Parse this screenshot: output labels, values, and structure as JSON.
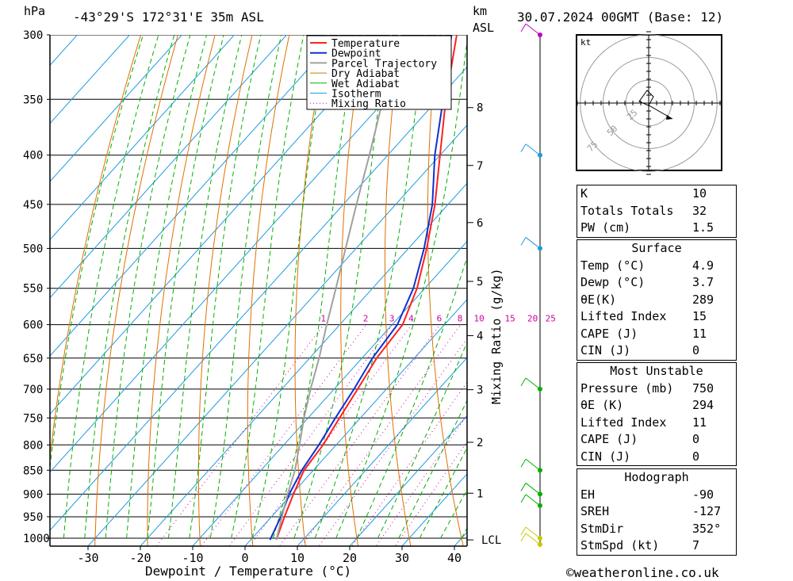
{
  "header": {
    "pressure_unit": "hPa",
    "location": "-43°29'S  172°31'E  35m  ASL",
    "height_unit": "km",
    "height_ref": "ASL",
    "datetime": "30.07.2024  00GMT  (Base: 12)"
  },
  "chart_data": {
    "type": "line",
    "title": "-43°29'S  172°31'E  35m  ASL",
    "xlabel": "Dewpoint / Temperature (°C)",
    "ylabel": "hPa",
    "y_right_label": "Mixing Ratio (g/kg)",
    "xlim": [
      -40,
      40
    ],
    "ylim": [
      1000,
      300
    ],
    "x_ticks": [
      -30,
      -20,
      -10,
      0,
      10,
      20,
      30,
      40
    ],
    "pressure_levels": [
      300,
      350,
      400,
      450,
      500,
      550,
      600,
      650,
      700,
      750,
      800,
      850,
      900,
      950,
      1000
    ],
    "height_ticks_km": [
      {
        "label": "8",
        "p": 357
      },
      {
        "label": "7",
        "p": 410
      },
      {
        "label": "6",
        "p": 470
      },
      {
        "label": "5",
        "p": 541
      },
      {
        "label": "4",
        "p": 616
      },
      {
        "label": "3",
        "p": 701
      },
      {
        "label": "2",
        "p": 795
      },
      {
        "label": "1",
        "p": 898
      }
    ],
    "lcl_label": "LCL",
    "lcl_pressure": 1004,
    "mixing_ratio_labels": [
      "1",
      "2",
      "3",
      "4",
      "6",
      "8",
      "10",
      "15",
      "20",
      "25"
    ],
    "mixing_ratio_values": [
      1,
      2,
      3,
      4,
      6,
      8,
      10,
      15,
      20,
      25
    ],
    "legend": [
      "Temperature",
      "Dewpoint",
      "Parcel Trajectory",
      "Dry Adiabat",
      "Wet Adiabat",
      "Isotherm",
      "Mixing Ratio"
    ],
    "colors": {
      "temperature": "#ff2020",
      "dewpoint": "#1030d0",
      "parcel": "#a0a0a0",
      "dry_adiabat": "#e07000",
      "wet_adiabat": "#00b000",
      "isotherm": "#1e9be0",
      "mixing_ratio": "#d000a0"
    },
    "series": [
      {
        "name": "Temperature",
        "points": [
          [
            1004,
            4.9
          ],
          [
            950,
            2.5
          ],
          [
            900,
            0.3
          ],
          [
            850,
            -1.8
          ],
          [
            800,
            -2.5
          ],
          [
            750,
            -4.0
          ],
          [
            700,
            -5.5
          ],
          [
            650,
            -7.2
          ],
          [
            600,
            -8.0
          ],
          [
            550,
            -11.5
          ],
          [
            500,
            -16.5
          ],
          [
            450,
            -22.5
          ],
          [
            400,
            -30.0
          ],
          [
            350,
            -38.5
          ],
          [
            300,
            -47.5
          ]
        ]
      },
      {
        "name": "Dewpoint",
        "points": [
          [
            1004,
            3.7
          ],
          [
            950,
            1.8
          ],
          [
            900,
            -0.5
          ],
          [
            850,
            -2.2
          ],
          [
            800,
            -3.3
          ],
          [
            750,
            -4.8
          ],
          [
            700,
            -6.2
          ],
          [
            650,
            -8.0
          ],
          [
            600,
            -9.0
          ],
          [
            550,
            -12.2
          ],
          [
            500,
            -17.0
          ],
          [
            450,
            -23.0
          ],
          [
            400,
            -31.0
          ],
          [
            350,
            -39.0
          ],
          [
            300,
            -48.5
          ]
        ]
      },
      {
        "name": "Parcel Trajectory",
        "points": [
          [
            1004,
            4.9
          ],
          [
            950,
            2.0
          ],
          [
            900,
            -0.8
          ],
          [
            850,
            -3.5
          ],
          [
            800,
            -7.0
          ],
          [
            750,
            -10.8
          ],
          [
            700,
            -14.5
          ],
          [
            650,
            -18.2
          ],
          [
            600,
            -22.5
          ],
          [
            550,
            -27.0
          ],
          [
            500,
            -32.0
          ],
          [
            450,
            -37.5
          ],
          [
            400,
            -43.5
          ],
          [
            350,
            -50.5
          ],
          [
            300,
            -58.5
          ]
        ]
      }
    ]
  },
  "hodograph": {
    "unit_label": "kt",
    "ring_labels": [
      "25",
      "50",
      "75"
    ]
  },
  "indices": {
    "rows": [
      {
        "label": "K",
        "value": "10"
      },
      {
        "label": "Totals Totals",
        "value": "32"
      },
      {
        "label": "PW (cm)",
        "value": "1.5"
      }
    ]
  },
  "surface": {
    "title": "Surface",
    "rows": [
      {
        "label": "Temp (°C)",
        "value": "4.9"
      },
      {
        "label": "Dewp (°C)",
        "value": "3.7"
      },
      {
        "label": "θE(K)",
        "value": "289"
      },
      {
        "label": "Lifted Index",
        "value": "15"
      },
      {
        "label": "CAPE (J)",
        "value": "11"
      },
      {
        "label": "CIN (J)",
        "value": "0"
      }
    ]
  },
  "most_unstable": {
    "title": "Most Unstable",
    "rows": [
      {
        "label": "Pressure (mb)",
        "value": "750"
      },
      {
        "label": "θE (K)",
        "value": "294"
      },
      {
        "label": "Lifted Index",
        "value": "11"
      },
      {
        "label": "CAPE (J)",
        "value": "0"
      },
      {
        "label": "CIN (J)",
        "value": "0"
      }
    ]
  },
  "hodograph_table": {
    "title": "Hodograph",
    "rows": [
      {
        "label": "EH",
        "value": "-90"
      },
      {
        "label": "SREH",
        "value": "-127"
      },
      {
        "label": "StmDir",
        "value": "352°"
      },
      {
        "label": "StmSpd (kt)",
        "value": "7"
      }
    ]
  },
  "footer": {
    "copyright": "©weatheronline.co.uk"
  }
}
